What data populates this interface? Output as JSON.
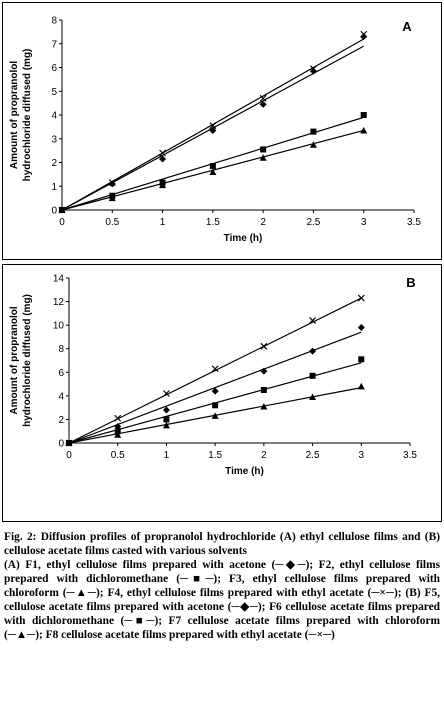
{
  "chart_data": [
    {
      "type": "line",
      "panel_label": "A",
      "xlabel": "Time (h)",
      "ylabel": [
        "Amount of propranolol",
        "hydrochloride diffused (mg)"
      ],
      "xlim": [
        0,
        3.5
      ],
      "ylim": [
        0,
        8
      ],
      "xticks": [
        "0",
        "0.5",
        "1",
        "1.5",
        "2",
        "2.5",
        "3",
        "3.5"
      ],
      "yticks": [
        "0",
        "1",
        "2",
        "3",
        "4",
        "5",
        "6",
        "7",
        "8"
      ],
      "x": [
        0,
        0.5,
        1,
        1.5,
        2,
        2.5,
        3
      ],
      "grid": false,
      "legend": "none",
      "series": [
        {
          "marker": "diamond",
          "values": [
            0,
            1.1,
            2.15,
            3.35,
            4.45,
            5.85,
            7.3
          ],
          "fit_end": 6.9
        },
        {
          "marker": "square",
          "values": [
            0,
            0.6,
            1.15,
            1.85,
            2.55,
            3.3,
            4.0
          ],
          "fit_end": 3.9
        },
        {
          "marker": "triangle",
          "values": [
            0,
            0.5,
            1.05,
            1.6,
            2.2,
            2.75,
            3.35
          ],
          "fit_end": 3.35
        },
        {
          "marker": "cross",
          "values": [
            0,
            1.15,
            2.4,
            3.55,
            4.7,
            5.95,
            7.4
          ],
          "fit_end": 7.2
        }
      ]
    },
    {
      "type": "line",
      "panel_label": "B",
      "xlabel": "Time (h)",
      "ylabel": [
        "Amount of propranolol",
        "hydrochloride diffused (mg)"
      ],
      "xlim": [
        0,
        3.5
      ],
      "ylim": [
        0,
        14
      ],
      "xticks": [
        "0",
        "0.5",
        "1",
        "1.5",
        "2",
        "2.5",
        "3",
        "3.5"
      ],
      "yticks": [
        "0",
        "2",
        "4",
        "6",
        "8",
        "10",
        "12",
        "14"
      ],
      "x": [
        0,
        0.5,
        1,
        1.5,
        2,
        2.5,
        3
      ],
      "grid": false,
      "legend": "none",
      "series": [
        {
          "marker": "diamond",
          "values": [
            0,
            1.4,
            2.8,
            4.4,
            6.1,
            7.8,
            9.8
          ],
          "fit_end": 9.4
        },
        {
          "marker": "square",
          "values": [
            0,
            1.0,
            2.0,
            3.2,
            4.5,
            5.7,
            7.1
          ],
          "fit_end": 6.8
        },
        {
          "marker": "triangle",
          "values": [
            0,
            0.7,
            1.5,
            2.3,
            3.1,
            3.9,
            4.8
          ],
          "fit_end": 4.7
        },
        {
          "marker": "cross",
          "values": [
            0,
            2.1,
            4.2,
            6.3,
            8.2,
            10.4,
            12.3
          ],
          "fit_end": 12.3
        }
      ]
    }
  ],
  "caption": {
    "title": "Fig. 2: Diffusion profiles of propranolol hydrochloride (A) ethyl cellulose films and (B) cellulose acetate films casted with various solvents",
    "body": "(A) F1, ethyl cellulose films prepared with acetone (─◆─); F2, ethyl cellulose films prepared with dichloromethane (─■─); F3, ethyl cellulose films prepared with chloroform (─▲─); F4, ethyl cellulose films prepared with ethyl acetate (─×─); (B) F5, cellulose acetate films prepared with acetone (─◆─); F6 cellulose acetate films prepared with dichloromethane (─■─); F7 cellulose acetate films prepared with chloroform (─▲─); F8 cellulose acetate films prepared with ethyl acetate (─×─)"
  }
}
